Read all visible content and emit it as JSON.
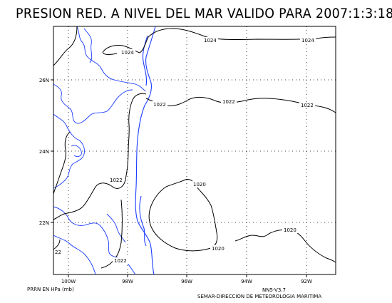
{
  "title": "PRESION RED. A NIVEL DEL MAR VALIDO PARA 2007:1:3:18Z",
  "axes": {
    "lat_labels": [
      "26N",
      "24N",
      "22N"
    ],
    "lon_labels": [
      "100W",
      "98W",
      "96W",
      "94W",
      "92W"
    ]
  },
  "contours": {
    "labels": [
      "1024",
      "1024",
      "1024",
      "1022",
      "1022",
      "1022",
      "1022",
      "1020",
      "1020",
      "1020",
      "1022",
      "22"
    ]
  },
  "footer": {
    "units": "PRRN EN HPa (mb)",
    "version": "NN5-V3.7",
    "credit": "SEMAR-DIRECCION DE METEOROLOGIA MARITIMA"
  },
  "colors": {
    "coastline": "#1a3cff",
    "contour": "#000000",
    "grid": "#000000"
  }
}
